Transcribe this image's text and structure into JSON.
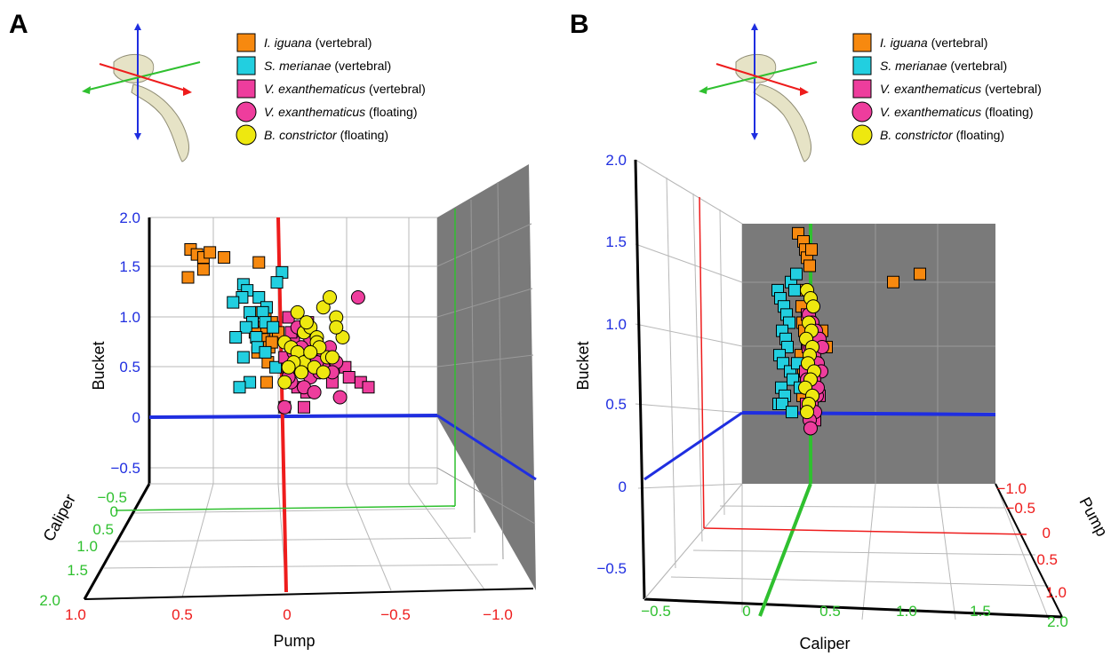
{
  "colors": {
    "iguana": "#f7890f",
    "merianae": "#22cfe0",
    "vexan_vertebral": "#ee3d9d",
    "vexan_floating": "#ee3d9d",
    "boa": "#eee80f",
    "pump_axis": "#ee1c1c",
    "caliper_axis": "#2fc02f",
    "bucket_axis": "#1f2ee0",
    "wall": "#7a7a7a",
    "grid": "#b8b8b8"
  },
  "legend": [
    {
      "species": "I. iguana",
      "desc": " (vertebral)",
      "marker": "square",
      "color_key": "iguana"
    },
    {
      "species": "S. merianae",
      "desc": " (vertebral)",
      "marker": "square",
      "color_key": "merianae"
    },
    {
      "species": "V. exanthematicus",
      "desc": " (vertebral)",
      "marker": "square",
      "color_key": "vexan_vertebral"
    },
    {
      "species": "V. exanthematicus",
      "desc": " (floating)",
      "marker": "circle",
      "color_key": "vexan_floating"
    },
    {
      "species": "B. constrictor",
      "desc": " (floating)",
      "marker": "circle",
      "color_key": "boa"
    }
  ],
  "panels": {
    "A": {
      "letter": "A",
      "axis_titles": {
        "bucket": "Bucket",
        "caliper": "Caliper",
        "pump": "Pump"
      },
      "bucket_ticks": [
        "2.0",
        "1.5",
        "1.0",
        "0.5",
        "0",
        "−0.5"
      ],
      "caliper_ticks": [
        "−0.5",
        "0",
        "0.5",
        "1.0",
        "1.5",
        "2.0"
      ],
      "pump_ticks": [
        "1.0",
        "0.5",
        "0",
        "−0.5",
        "−1.0"
      ]
    },
    "B": {
      "letter": "B",
      "axis_titles": {
        "bucket": "Bucket",
        "caliper": "Caliper",
        "pump": "Pump"
      },
      "bucket_ticks": [
        "2.0",
        "1.5",
        "1.0",
        "0.5",
        "0",
        "−0.5"
      ],
      "caliper_ticks": [
        "−0.5",
        "0",
        "0.5",
        "1.0",
        "1.5",
        "2.0"
      ],
      "pump_ticks": [
        "−1.0",
        "−0.5",
        "0",
        "0.5",
        "1.0"
      ]
    }
  },
  "chart_data": [
    {
      "type": "scatter",
      "panel": "A",
      "title": "",
      "xlabel": "Pump",
      "ylabel": "Bucket",
      "zlabel": "Caliper",
      "xlim": [
        1.0,
        -1.0
      ],
      "ylim": [
        -0.5,
        2.0
      ],
      "series": [
        {
          "name": "I. iguana (vertebral)",
          "x": [
            0.68,
            0.63,
            0.58,
            0.53,
            0.42,
            0.15,
            0.7,
            0.58,
            0.14,
            0.1,
            0.05,
            0.12,
            0.18,
            0.02,
            0.12,
            0.07,
            0.16,
            0.08,
            0.0,
            0.05,
            0.09
          ],
          "y": [
            1.68,
            1.63,
            1.6,
            1.65,
            1.6,
            1.55,
            1.4,
            1.48,
            1.05,
            1.0,
            0.95,
            0.9,
            0.85,
            0.8,
            0.78,
            0.7,
            0.65,
            0.55,
            0.85,
            0.75,
            0.35
          ]
        },
        {
          "name": "S. merianae (vertebral)",
          "x": [
            0.27,
            0.24,
            0.15,
            0.09,
            -0.03,
            0.01,
            0.28,
            0.35,
            0.22,
            0.12,
            0.2,
            0.1,
            0.04,
            0.25,
            0.17,
            0.33,
            0.16,
            0.1,
            0.27,
            0.02,
            0.22,
            0.3
          ],
          "y": [
            1.33,
            1.27,
            1.2,
            1.1,
            1.45,
            1.35,
            1.2,
            1.15,
            1.05,
            1.05,
            0.95,
            0.95,
            0.9,
            0.9,
            0.8,
            0.8,
            0.7,
            0.65,
            0.6,
            0.5,
            0.35,
            0.3
          ]
        },
        {
          "name": "V. exanthematicus (vertebral)",
          "x": [
            -0.08,
            -0.23,
            -0.18,
            -0.12,
            -0.05,
            -0.3,
            -0.28,
            -0.4,
            -0.52,
            -0.64,
            -0.7,
            -0.55,
            -0.42,
            -0.05,
            -0.2,
            -0.08,
            -0.15,
            -0.22,
            -0.1
          ],
          "y": [
            1.0,
            0.95,
            0.85,
            0.75,
            0.6,
            0.5,
            0.6,
            0.45,
            0.5,
            0.35,
            0.3,
            0.4,
            0.35,
            0.1,
            0.1,
            0.4,
            0.3,
            0.25,
            0.85
          ]
        },
        {
          "name": "V. exanthematicus (floating)",
          "x": [
            -0.15,
            -0.2,
            -0.25,
            -0.3,
            -0.35,
            -0.4,
            -0.45,
            -0.25,
            -0.35,
            -0.42,
            -0.15,
            -0.25,
            -0.32,
            -0.2,
            -0.1,
            -0.28,
            -0.48,
            -0.62,
            -0.4,
            -0.3,
            -0.05,
            -0.18,
            -0.12,
            -0.08
          ],
          "y": [
            0.9,
            0.85,
            0.78,
            0.7,
            0.65,
            0.6,
            0.55,
            0.6,
            0.5,
            0.45,
            0.5,
            0.4,
            0.45,
            0.3,
            0.35,
            0.25,
            0.2,
            1.2,
            0.7,
            0.55,
            0.1,
            0.7,
            0.65,
            0.4
          ]
        },
        {
          "name": "B. constrictor (floating)",
          "x": [
            -0.05,
            -0.1,
            -0.15,
            -0.2,
            -0.25,
            -0.3,
            -0.35,
            -0.4,
            -0.45,
            -0.5,
            -0.15,
            -0.22,
            -0.3,
            -0.38,
            -0.45,
            -0.2,
            -0.28,
            -0.35,
            -0.12,
            -0.18,
            -0.08,
            -0.05,
            -0.32,
            -0.25,
            -0.42
          ],
          "y": [
            0.75,
            0.7,
            0.65,
            0.85,
            0.9,
            0.8,
            1.1,
            1.2,
            1.0,
            0.8,
            1.05,
            0.95,
            0.75,
            0.6,
            0.9,
            0.55,
            0.5,
            0.45,
            0.55,
            0.45,
            0.5,
            0.35,
            0.7,
            0.65,
            0.6
          ]
        }
      ]
    },
    {
      "type": "scatter",
      "panel": "B",
      "title": "",
      "xlabel": "Caliper",
      "ylabel": "Bucket",
      "zlabel": "Pump",
      "xlim": [
        -0.5,
        2.0
      ],
      "ylim": [
        -0.5,
        2.0
      ],
      "series": [
        {
          "name": "I. iguana (vertebral)",
          "x": [
            0.28,
            0.34,
            0.36,
            0.38,
            0.41,
            0.43,
            0.33,
            0.35,
            0.4,
            0.38,
            0.31,
            0.34,
            0.38,
            0.36,
            0.33,
            0.4,
            0.55,
            0.6,
            1.35,
            1.65,
            0.35,
            0.32
          ],
          "y": [
            1.55,
            1.5,
            1.45,
            1.4,
            1.35,
            1.45,
            1.0,
            0.95,
            0.9,
            0.85,
            0.8,
            0.7,
            0.65,
            0.6,
            0.55,
            0.45,
            0.95,
            0.85,
            1.25,
            1.3,
            1.2,
            1.1
          ]
        },
        {
          "name": "S. merianae (vertebral)",
          "x": [
            0.05,
            0.08,
            0.12,
            0.15,
            0.18,
            0.2,
            0.1,
            0.14,
            0.16,
            0.07,
            0.11,
            0.19,
            0.22,
            0.26,
            0.09,
            0.13,
            0.24,
            0.27,
            0.3,
            0.06,
            0.1,
            0.21
          ],
          "y": [
            1.2,
            1.15,
            1.1,
            1.05,
            1.0,
            1.25,
            0.95,
            0.9,
            0.85,
            0.8,
            0.75,
            0.7,
            0.65,
            1.3,
            0.6,
            0.55,
            1.2,
            0.75,
            0.6,
            0.5,
            0.5,
            0.45
          ]
        },
        {
          "name": "V. exanthematicus (vertebral)",
          "x": [
            0.38,
            0.42,
            0.46,
            0.5,
            0.39,
            0.44,
            0.48,
            0.36,
            0.41,
            0.45,
            0.52,
            0.37,
            0.43,
            0.47
          ],
          "y": [
            1.05,
            1.0,
            0.95,
            0.9,
            0.85,
            0.8,
            0.75,
            0.7,
            0.65,
            0.6,
            0.55,
            0.5,
            0.45,
            0.4
          ]
        },
        {
          "name": "V. exanthematicus (floating)",
          "x": [
            0.4,
            0.44,
            0.48,
            0.52,
            0.42,
            0.46,
            0.5,
            0.54,
            0.38,
            0.45,
            0.49,
            0.43,
            0.47,
            0.41,
            0.55,
            0.39,
            0.46,
            0.5,
            0.44,
            0.42
          ],
          "y": [
            1.05,
            1.0,
            0.95,
            0.9,
            0.85,
            0.8,
            0.75,
            0.7,
            0.65,
            0.6,
            0.55,
            0.5,
            0.45,
            0.4,
            0.85,
            0.75,
            0.65,
            0.6,
            0.55,
            0.35
          ]
        },
        {
          "name": "B. constrictor (floating)",
          "x": [
            0.38,
            0.42,
            0.45,
            0.4,
            0.43,
            0.37,
            0.44,
            0.41,
            0.39,
            0.46,
            0.42,
            0.36,
            0.44,
            0.4,
            0.38
          ],
          "y": [
            1.2,
            1.15,
            1.1,
            1.0,
            0.95,
            0.9,
            0.85,
            0.8,
            0.75,
            0.7,
            0.65,
            0.6,
            0.55,
            0.5,
            0.45
          ]
        }
      ]
    }
  ]
}
